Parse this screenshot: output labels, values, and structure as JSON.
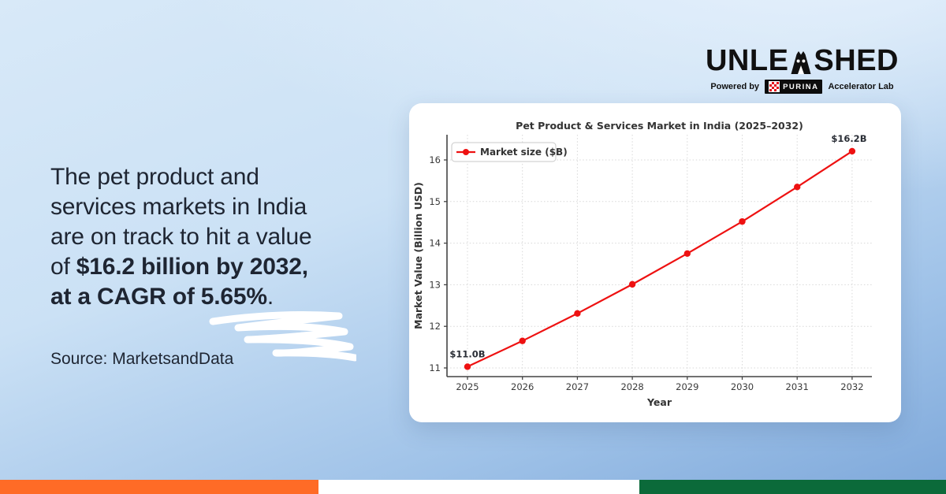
{
  "logo": {
    "wordmark_left": "UNLE",
    "wordmark_right": "SHED",
    "powered_by": "Powered by",
    "purina": "PURINA",
    "accelerator": "Accelerator Lab"
  },
  "headline": {
    "lines": [
      {
        "pre": "The pet product and",
        "bold": "",
        "post": ""
      },
      {
        "pre": "services markets in India",
        "bold": "",
        "post": ""
      },
      {
        "pre": "are on track to hit a value",
        "bold": "",
        "post": ""
      },
      {
        "pre": "of ",
        "bold": "$16.2 billion by 2032,",
        "post": ""
      },
      {
        "pre": "",
        "bold": "at a CAGR of 5.65%",
        "post": "."
      }
    ]
  },
  "source": {
    "text": "Source: MarketsandData"
  },
  "chart_data": {
    "type": "line",
    "title": "Pet Product & Services Market in India (2025–2032)",
    "xlabel": "Year",
    "ylabel": "Market Value (Billion USD)",
    "x": [
      2025,
      2026,
      2027,
      2028,
      2029,
      2030,
      2031,
      2032
    ],
    "series": [
      {
        "name": "Market size ($B)",
        "color": "#ee1111",
        "values": [
          11.03,
          11.65,
          12.31,
          13.01,
          13.75,
          14.52,
          15.35,
          16.21
        ]
      }
    ],
    "yticks": [
      11,
      12,
      13,
      14,
      15,
      16
    ],
    "ylim": [
      10.8,
      16.5
    ],
    "grid": true,
    "legend_position": "upper left",
    "annotations": [
      {
        "text": "$11.0B",
        "x": 2025,
        "y": 11.03
      },
      {
        "text": "$16.2B",
        "x": 2032,
        "y": 16.21
      }
    ]
  },
  "footer_bar": {
    "segments": [
      {
        "name": "saffron",
        "color": "#ff6b26",
        "width_pct": 33.7
      },
      {
        "name": "white",
        "color": "#ffffff",
        "width_pct": 33.9
      },
      {
        "name": "green",
        "color": "#0b6a3a",
        "width_pct": 32.4
      }
    ]
  },
  "colors": {
    "background_top": "#d8e9f8",
    "background_bottom": "#7ea8da",
    "headline_text": "#1e2532",
    "line_red": "#ee1111"
  }
}
